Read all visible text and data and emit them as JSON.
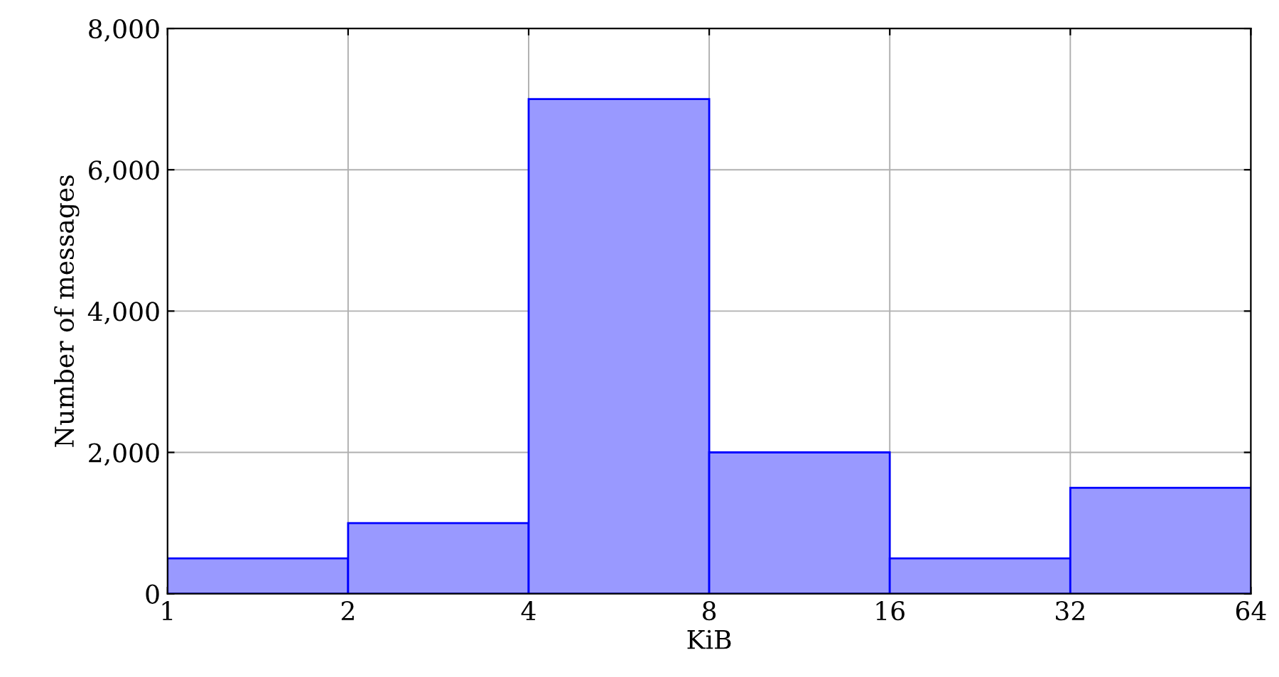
{
  "chart_data": {
    "type": "histogram",
    "xlabel": "KiB",
    "ylabel": "Number of messages",
    "bins": [
      1,
      2,
      4,
      8,
      16,
      32,
      64
    ],
    "values": [
      500,
      1000,
      7000,
      2000,
      500,
      1500
    ],
    "color": "#9999ff",
    "log": "x",
    "xlim": [
      1,
      64
    ],
    "xticks": [
      1,
      2,
      4,
      8,
      16,
      32,
      64
    ],
    "ylim": [
      0,
      8000
    ],
    "yticks": [
      0,
      {
        "value": 2000,
        "label": "2,000"
      },
      {
        "value": 4000,
        "label": "4,000"
      },
      {
        "value": 6000,
        "label": "6,000"
      },
      {
        "value": 8000,
        "label": "8,000"
      }
    ],
    "grid": true
  }
}
